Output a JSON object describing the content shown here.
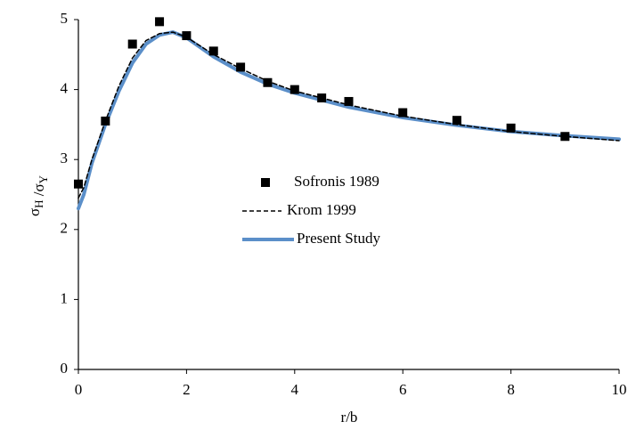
{
  "chart_data": {
    "type": "line",
    "x_label": "r/b",
    "y_label": "σH /σY",
    "xlim": [
      0,
      10
    ],
    "xticks": [
      0,
      2,
      4,
      6,
      8,
      10
    ],
    "ylim": [
      0,
      5
    ],
    "yticks": [
      0,
      1,
      2,
      3,
      4,
      5
    ],
    "grid": false,
    "legend": "center",
    "series": [
      {
        "name": "Sofronis 1989",
        "color": "#000000",
        "mode": "markers",
        "x": [
          0,
          0.5,
          1,
          1.5,
          2,
          2.5,
          3,
          3.5,
          4,
          4.5,
          5,
          6,
          7,
          8,
          9
        ],
        "values": [
          2.65,
          3.55,
          4.65,
          4.97,
          4.77,
          4.55,
          4.32,
          4.1,
          4.0,
          3.88,
          3.83,
          3.67,
          3.56,
          3.45,
          3.33
        ]
      },
      {
        "name": "Krom 1999",
        "color": "#000000",
        "mode": "dashed",
        "x": [
          0,
          0.1,
          0.25,
          0.5,
          0.75,
          1,
          1.25,
          1.5,
          1.75,
          2,
          2.5,
          3,
          3.5,
          4,
          5,
          6,
          7,
          8,
          9,
          10
        ],
        "values": [
          2.45,
          2.6,
          3.0,
          3.55,
          4.05,
          4.45,
          4.7,
          4.8,
          4.82,
          4.75,
          4.5,
          4.3,
          4.12,
          3.98,
          3.78,
          3.62,
          3.5,
          3.4,
          3.33,
          3.27
        ]
      },
      {
        "name": "Present Study",
        "color": "#5b8fc9",
        "mode": "solid",
        "x": [
          0,
          0.05,
          0.1,
          0.25,
          0.5,
          0.75,
          1,
          1.25,
          1.5,
          1.75,
          2,
          2.5,
          3,
          3.5,
          4,
          5,
          6,
          7,
          8,
          9,
          10
        ],
        "values": [
          2.3,
          2.4,
          2.5,
          2.95,
          3.5,
          3.98,
          4.38,
          4.65,
          4.78,
          4.82,
          4.74,
          4.47,
          4.25,
          4.08,
          3.95,
          3.75,
          3.6,
          3.49,
          3.4,
          3.34,
          3.29
        ]
      }
    ]
  }
}
